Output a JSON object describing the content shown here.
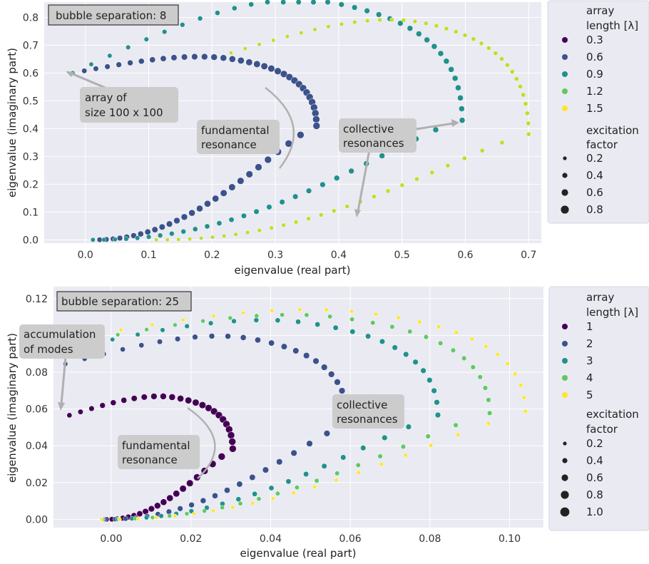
{
  "chart_data": [
    {
      "type": "scatter",
      "title_box": "bubble separation: 8",
      "xlabel": "eigenvalue (real part)",
      "ylabel": "eigenvalue (imaginary part)",
      "xlim": [
        -0.065,
        0.72
      ],
      "ylim": [
        -0.012,
        0.855
      ],
      "xticks": [
        "0.0",
        "0.1",
        "0.2",
        "0.3",
        "0.4",
        "0.5",
        "0.6",
        "0.7"
      ],
      "xtick_values": [
        0.0,
        0.1,
        0.2,
        0.3,
        0.4,
        0.5,
        0.6,
        0.7
      ],
      "yticks": [
        "0.0",
        "0.1",
        "0.2",
        "0.3",
        "0.4",
        "0.5",
        "0.6",
        "0.7",
        "0.8"
      ],
      "ytick_values": [
        0.0,
        0.1,
        0.2,
        0.3,
        0.4,
        0.5,
        0.6,
        0.7,
        0.8
      ],
      "grid": true,
      "legend": {
        "placement": "outside-right",
        "hue_title_line1": "array",
        "hue_title_line2": "length [λ]",
        "hue_entries": [
          "0.3",
          "0.6",
          "0.9",
          "1.2",
          "1.5"
        ],
        "size_title_line1": "excitation",
        "size_title_line2": "factor",
        "size_entries": [
          "0.2",
          "0.4",
          "0.6",
          "0.8"
        ]
      },
      "annotations": [
        {
          "lines": [
            "array of",
            "size 100 x 100"
          ]
        },
        {
          "lines": [
            "fundamental",
            "resonance"
          ]
        },
        {
          "lines": [
            "collective",
            "resonances"
          ]
        }
      ],
      "series": [
        {
          "name": "0.6",
          "color": "#3b528b",
          "x_min": -0.02,
          "x_peak": 0.11,
          "x_max": 0.365,
          "y_peak": 0.675,
          "y_turn": 0.41
        },
        {
          "name": "0.9",
          "color": "#21918c",
          "x_min": -0.02,
          "x_peak": 0.29,
          "x_max": 0.595,
          "y_peak": 0.9,
          "y_turn": 0.43
        },
        {
          "name": "1.5",
          "color": "#bddf26",
          "x_min": 0.23,
          "x_peak": 0.32,
          "x_max": 0.7,
          "y_peak": 0.82,
          "y_turn": 0.38
        }
      ]
    },
    {
      "type": "scatter",
      "title_box": "bubble separation: 25",
      "xlabel": "eigenvalue (real part)",
      "ylabel": "eigenvalue (imaginary part)",
      "xlim": [
        -0.0145,
        0.1085
      ],
      "ylim": [
        -0.0045,
        0.1265
      ],
      "xticks": [
        "0.00",
        "0.02",
        "0.04",
        "0.06",
        "0.08",
        "0.10"
      ],
      "xtick_values": [
        0.0,
        0.02,
        0.04,
        0.06,
        0.08,
        0.1
      ],
      "yticks": [
        "0.00",
        "0.02",
        "0.04",
        "0.06",
        "0.08",
        "0.10",
        "0.12"
      ],
      "ytick_values": [
        0.0,
        0.02,
        0.04,
        0.06,
        0.08,
        0.1,
        0.12
      ],
      "grid": true,
      "legend": {
        "placement": "outside-right",
        "hue_title_line1": "array",
        "hue_title_line2": "length [λ]",
        "hue_entries": [
          "1",
          "2",
          "3",
          "4",
          "5"
        ],
        "size_title_line1": "excitation",
        "size_title_line2": "factor",
        "size_entries": [
          "0.2",
          "0.4",
          "0.6",
          "0.8",
          "1.0"
        ]
      },
      "annotations": [
        {
          "lines": [
            "accumulation",
            "of modes"
          ]
        },
        {
          "lines": [
            "fundamental",
            "resonance"
          ]
        },
        {
          "lines": [
            "collective",
            "resonances"
          ]
        }
      ],
      "series": [
        {
          "name": "1",
          "color": "#440154",
          "x_min": -0.0105,
          "x_peak": 0.003,
          "x_max": 0.0305,
          "y_peak": 0.069,
          "y_turn": 0.038
        },
        {
          "name": "2",
          "color": "#3b528b",
          "x_min": -0.0115,
          "x_peak": 0.03,
          "x_max": 0.0595,
          "y_peak": 0.103,
          "y_turn": 0.052
        },
        {
          "name": "3",
          "color": "#21918c",
          "x_min": -0.0125,
          "x_peak": 0.04,
          "x_max": 0.082,
          "y_peak": 0.112,
          "y_turn": 0.056
        },
        {
          "name": "4",
          "color": "#5ec962",
          "x_min": -0.013,
          "x_peak": 0.05,
          "x_max": 0.095,
          "y_peak": 0.115,
          "y_turn": 0.057
        },
        {
          "name": "5",
          "color": "#fde725",
          "x_min": -0.0135,
          "x_peak": 0.055,
          "x_max": 0.104,
          "y_peak": 0.118,
          "y_turn": 0.058
        }
      ]
    }
  ],
  "colors": {
    "panel_bg": "#eaeaf2",
    "grid": "#ffffff",
    "annotation_box": "#cccccc",
    "annotation_arrow": "#b0b0b0",
    "palette": [
      "#440154",
      "#3b528b",
      "#21918c",
      "#5ec962",
      "#fde725"
    ]
  }
}
